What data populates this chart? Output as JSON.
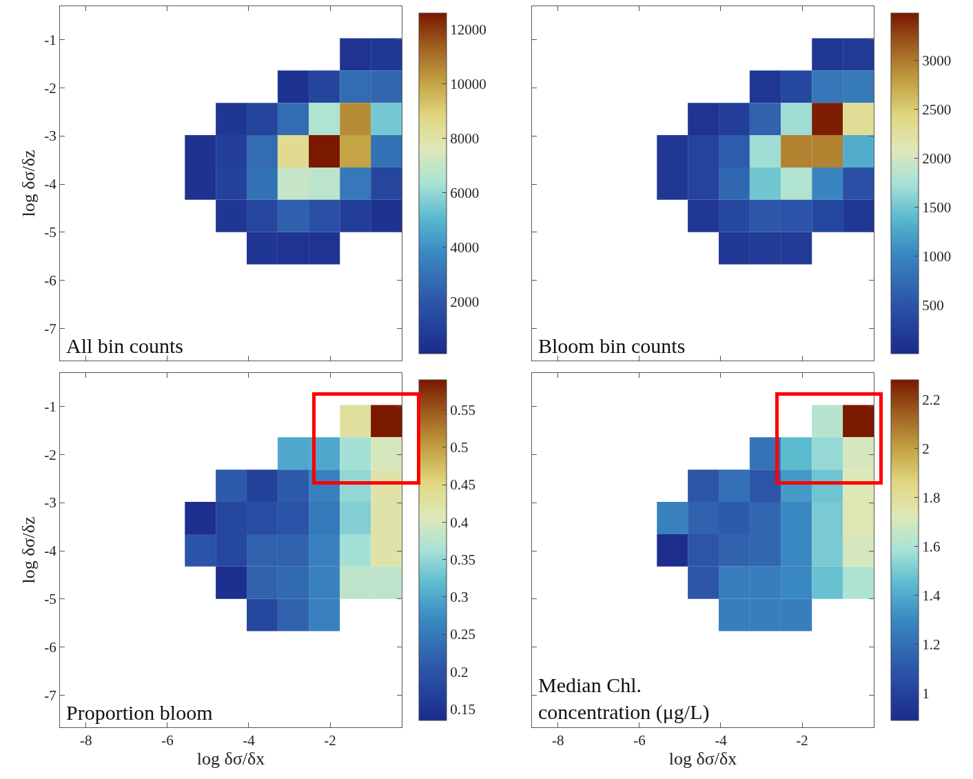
{
  "chart_data": [
    {
      "type": "heatmap",
      "ylabel": "log δσ/δz",
      "annotations": [
        "All bin counts"
      ],
      "x": [
        -5.19,
        -4.43,
        -3.67,
        -2.91,
        -2.14,
        -1.38,
        -0.62
      ],
      "y": [
        -1.31,
        -1.98,
        -2.65,
        -3.32,
        -3.99,
        -4.66,
        -5.33
      ],
      "cells": [
        [
          null,
          null,
          null,
          null,
          null,
          500,
          700
        ],
        [
          null,
          null,
          null,
          400,
          1200,
          2800,
          2600
        ],
        [
          null,
          600,
          1200,
          2800,
          6500,
          10500,
          5500
        ],
        [
          400,
          1000,
          2800,
          8500,
          12600,
          10000,
          3000
        ],
        [
          400,
          1100,
          3000,
          7000,
          6800,
          3200,
          1300
        ],
        [
          null,
          600,
          1300,
          2400,
          1700,
          900,
          400
        ],
        [
          null,
          null,
          600,
          500,
          500,
          null,
          null
        ]
      ],
      "clim": [
        100,
        12600
      ],
      "cticks": [
        2000,
        4000,
        6000,
        8000,
        10000,
        12000
      ],
      "xlim": [
        -8.64,
        -0.24
      ],
      "ylim": [
        -7.66,
        -0.31
      ],
      "xticks": [
        -8,
        -6,
        -4,
        -2
      ],
      "yticks": [
        -7,
        -6,
        -5,
        -4,
        -3,
        -2,
        -1
      ],
      "tick_labels": "y"
    },
    {
      "type": "heatmap",
      "annotations": [
        "Bloom bin counts"
      ],
      "x": [
        -5.19,
        -4.43,
        -3.67,
        -2.91,
        -2.14,
        -1.38,
        -0.62
      ],
      "y": [
        -1.31,
        -1.98,
        -2.65,
        -3.32,
        -3.99,
        -4.66,
        -5.33
      ],
      "cells": [
        [
          null,
          null,
          null,
          null,
          null,
          150,
          200
        ],
        [
          null,
          null,
          null,
          150,
          350,
          850,
          900
        ],
        [
          null,
          120,
          250,
          650,
          1700,
          3450,
          2300
        ],
        [
          150,
          300,
          600,
          1700,
          2950,
          2950,
          1300
        ],
        [
          150,
          300,
          700,
          1500,
          1800,
          1000,
          450
        ],
        [
          null,
          150,
          350,
          550,
          500,
          350,
          150
        ],
        [
          null,
          null,
          150,
          200,
          200,
          null,
          null
        ]
      ],
      "clim": [
        5,
        3480
      ],
      "cticks": [
        500,
        1000,
        1500,
        2000,
        2500,
        3000
      ],
      "xlim": [
        -8.64,
        -0.24
      ],
      "ylim": [
        -7.66,
        -0.31
      ],
      "xticks": [
        -8,
        -6,
        -4,
        -2
      ],
      "yticks": [
        -7,
        -6,
        -5,
        -4,
        -3,
        -2,
        -1
      ],
      "tick_labels": false
    },
    {
      "type": "heatmap",
      "xlabel": "log δσ/δx",
      "ylabel": "log δσ/δz",
      "annotations": [
        "Proportion bloom"
      ],
      "x": [
        -5.19,
        -4.43,
        -3.67,
        -2.91,
        -2.14,
        -1.38,
        -0.62
      ],
      "y": [
        -1.31,
        -1.98,
        -2.65,
        -3.32,
        -3.99,
        -4.66,
        -5.33
      ],
      "cells": [
        [
          null,
          null,
          null,
          null,
          null,
          0.43,
          0.59
        ],
        [
          null,
          null,
          null,
          0.3,
          0.3,
          0.36,
          0.4
        ],
        [
          null,
          0.21,
          0.17,
          0.21,
          0.26,
          0.35,
          0.42
        ],
        [
          0.14,
          0.18,
          0.19,
          0.2,
          0.25,
          0.34,
          0.42
        ],
        [
          0.2,
          0.18,
          0.22,
          0.22,
          0.26,
          0.36,
          0.42
        ],
        [
          null,
          0.14,
          0.22,
          0.23,
          0.26,
          0.38,
          0.38
        ],
        [
          null,
          null,
          0.18,
          0.22,
          0.26,
          null,
          null
        ]
      ],
      "clim": [
        0.135,
        0.59
      ],
      "cticks": [
        0.15,
        0.2,
        0.25,
        0.3,
        0.35,
        0.4,
        0.45,
        0.5,
        0.55
      ],
      "xlim": [
        -8.64,
        -0.24
      ],
      "ylim": [
        -7.66,
        -0.31
      ],
      "xticks": [
        -8,
        -6,
        -4,
        -2
      ],
      "yticks": [
        -7,
        -6,
        -5,
        -4,
        -3,
        -2,
        -1
      ]
    },
    {
      "type": "heatmap",
      "xlabel": "log δσ/δx",
      "annotations": [
        "Median Chl.\nconcentration (μg/L)"
      ],
      "x": [
        -5.19,
        -4.43,
        -3.67,
        -2.91,
        -2.14,
        -1.38,
        -0.62
      ],
      "y": [
        -1.31,
        -1.98,
        -2.65,
        -3.32,
        -3.99,
        -4.66,
        -5.33
      ],
      "cells": [
        [
          null,
          null,
          null,
          null,
          null,
          1.62,
          2.28
        ],
        [
          null,
          null,
          null,
          1.22,
          1.45,
          1.55,
          1.7
        ],
        [
          null,
          1.1,
          1.2,
          1.1,
          1.35,
          1.48,
          1.72
        ],
        [
          1.27,
          1.15,
          1.12,
          1.17,
          1.3,
          1.5,
          1.74
        ],
        [
          0.9,
          1.1,
          1.15,
          1.17,
          1.3,
          1.5,
          1.7
        ],
        [
          null,
          1.1,
          1.26,
          1.26,
          1.3,
          1.47,
          1.6
        ],
        [
          null,
          null,
          1.26,
          1.26,
          1.26,
          null,
          null
        ]
      ],
      "clim": [
        0.89,
        2.28
      ],
      "cticks": [
        1,
        1.2,
        1.4,
        1.6,
        1.8,
        2,
        2.2
      ],
      "xlim": [
        -8.64,
        -0.24
      ],
      "ylim": [
        -7.66,
        -0.31
      ],
      "xticks": [
        -8,
        -6,
        -4,
        -2
      ],
      "yticks": [
        -7,
        -6,
        -5,
        -4,
        -3,
        -2,
        -1
      ],
      "tick_labels": "x"
    }
  ]
}
